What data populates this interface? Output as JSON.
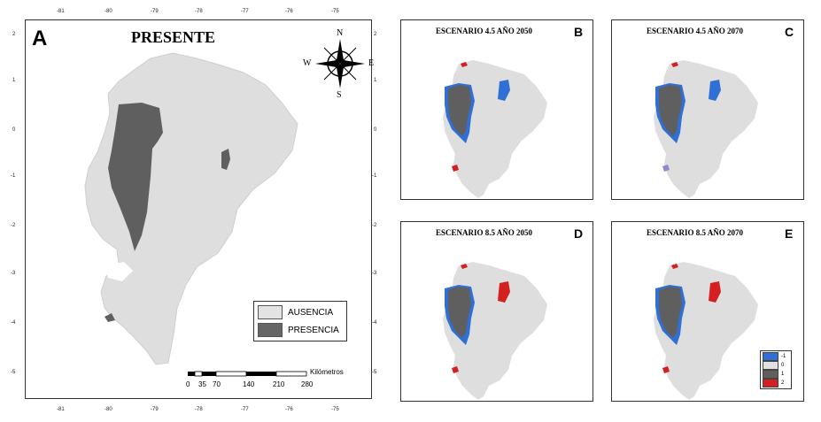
{
  "panel_a": {
    "letter": "A",
    "title": "PRESENTE",
    "top_ticks": [
      "-81",
      "-80",
      "-79",
      "-78",
      "-77",
      "-76",
      "-75"
    ],
    "bottom_ticks": [
      "-81",
      "-80",
      "-79",
      "-78",
      "-77",
      "-76",
      "-75"
    ],
    "left_ticks": [
      "2",
      "1",
      "0",
      "-1",
      "-2",
      "-3",
      "-4",
      "-5"
    ],
    "right_ticks": [
      "2",
      "1",
      "0",
      "-1",
      "-2",
      "-3",
      "-4",
      "-5"
    ],
    "compass": {
      "n": "N",
      "s": "S",
      "e": "E",
      "w": "W"
    },
    "legend": [
      {
        "label": "AUSENCIA",
        "color": "#e3e3e3"
      },
      {
        "label": "PRESENCIA",
        "color": "#666666"
      }
    ],
    "scale": {
      "unit": "Kilómetros",
      "labels": [
        "0",
        "35",
        "70",
        "140",
        "210",
        "280"
      ]
    }
  },
  "colors": {
    "absence": "#dedede",
    "presence": "#5f5f5f",
    "loss": "#2f6fd6",
    "gain": "#d42020"
  },
  "small_panels": [
    {
      "id": "B",
      "letter": "B",
      "title": "ESCENARIO 4.5 AÑO 2050"
    },
    {
      "id": "C",
      "letter": "C",
      "title": "ESCENARIO 4.5 AÑO 2070"
    },
    {
      "id": "D",
      "letter": "D",
      "title": "ESCENARIO 8.5 AÑO 2050"
    },
    {
      "id": "E",
      "letter": "E",
      "title": "ESCENARIO 8.5 AÑO 2070"
    }
  ],
  "change_legend": [
    {
      "label": "-1",
      "color": "#2f6fd6"
    },
    {
      "label": "0",
      "color": "#e0e0e0"
    },
    {
      "label": "1",
      "color": "#5f5f5f"
    },
    {
      "label": "2",
      "color": "#d42020"
    }
  ]
}
